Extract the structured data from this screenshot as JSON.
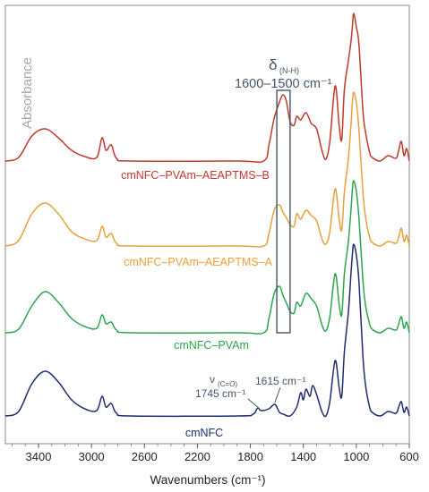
{
  "chart_data": {
    "type": "line",
    "xlabel": "Wavenumbers (cm⁻¹)",
    "ylabel": "Absorbance",
    "x_reversed": true,
    "xlim": [
      3650,
      600
    ],
    "x_ticks": [
      3400,
      3000,
      2600,
      2200,
      1800,
      1400,
      1000,
      600
    ],
    "x_tick_labels": [
      "3400",
      "3000",
      "2600",
      "2200",
      "1800",
      "1400",
      "1000",
      "600"
    ],
    "y_ticks_shown": false,
    "grid": false,
    "series": [
      {
        "name": "cmNFC–PVAm–AEAPTMS–B",
        "color": "#c0392b",
        "offset": 180,
        "points": [
          [
            3650,
            0
          ],
          [
            3550,
            4
          ],
          [
            3450,
            28
          ],
          [
            3350,
            36
          ],
          [
            3250,
            26
          ],
          [
            3150,
            12
          ],
          [
            3050,
            5
          ],
          [
            2960,
            4
          ],
          [
            2920,
            26
          ],
          [
            2890,
            12
          ],
          [
            2850,
            18
          ],
          [
            2810,
            3
          ],
          [
            2700,
            0
          ],
          [
            1900,
            0
          ],
          [
            1700,
            0
          ],
          [
            1660,
            18
          ],
          [
            1620,
            48
          ],
          [
            1580,
            66
          ],
          [
            1555,
            74
          ],
          [
            1530,
            68
          ],
          [
            1500,
            44
          ],
          [
            1470,
            40
          ],
          [
            1450,
            50
          ],
          [
            1420,
            46
          ],
          [
            1380,
            54
          ],
          [
            1340,
            42
          ],
          [
            1300,
            36
          ],
          [
            1260,
            12
          ],
          [
            1230,
            2
          ],
          [
            1200,
            22
          ],
          [
            1160,
            84
          ],
          [
            1130,
            40
          ],
          [
            1110,
            24
          ],
          [
            1090,
            80
          ],
          [
            1060,
            112
          ],
          [
            1040,
            134
          ],
          [
            1030,
            150
          ],
          [
            1020,
            165
          ],
          [
            1000,
            150
          ],
          [
            980,
            130
          ],
          [
            950,
            56
          ],
          [
            930,
            32
          ],
          [
            900,
            10
          ],
          [
            880,
            4
          ],
          [
            820,
            0
          ],
          [
            760,
            6
          ],
          [
            700,
            3
          ],
          [
            680,
            12
          ],
          [
            660,
            22
          ],
          [
            640,
            6
          ],
          [
            620,
            14
          ],
          [
            600,
            0
          ]
        ]
      },
      {
        "name": "cmNFC–PVAm–AEAPTMS–A",
        "color": "#e8a03c",
        "offset": 275,
        "points": [
          [
            3650,
            0
          ],
          [
            3550,
            6
          ],
          [
            3450,
            36
          ],
          [
            3350,
            48
          ],
          [
            3250,
            36
          ],
          [
            3150,
            16
          ],
          [
            3050,
            8
          ],
          [
            2960,
            6
          ],
          [
            2920,
            22
          ],
          [
            2890,
            10
          ],
          [
            2850,
            14
          ],
          [
            2810,
            3
          ],
          [
            2700,
            0
          ],
          [
            1900,
            0
          ],
          [
            1700,
            0
          ],
          [
            1660,
            14
          ],
          [
            1620,
            40
          ],
          [
            1580,
            46
          ],
          [
            1555,
            38
          ],
          [
            1530,
            32
          ],
          [
            1500,
            24
          ],
          [
            1470,
            22
          ],
          [
            1450,
            36
          ],
          [
            1420,
            30
          ],
          [
            1380,
            40
          ],
          [
            1340,
            34
          ],
          [
            1300,
            28
          ],
          [
            1260,
            8
          ],
          [
            1230,
            2
          ],
          [
            1200,
            16
          ],
          [
            1160,
            64
          ],
          [
            1130,
            30
          ],
          [
            1110,
            18
          ],
          [
            1090,
            60
          ],
          [
            1060,
            98
          ],
          [
            1040,
            136
          ],
          [
            1030,
            160
          ],
          [
            1020,
            172
          ],
          [
            1000,
            160
          ],
          [
            980,
            130
          ],
          [
            950,
            60
          ],
          [
            930,
            32
          ],
          [
            900,
            10
          ],
          [
            880,
            4
          ],
          [
            820,
            0
          ],
          [
            760,
            5
          ],
          [
            700,
            3
          ],
          [
            680,
            10
          ],
          [
            660,
            20
          ],
          [
            640,
            5
          ],
          [
            620,
            12
          ],
          [
            600,
            0
          ]
        ]
      },
      {
        "name": "cmNFC–PVAm",
        "color": "#2ca64e",
        "offset": 372,
        "points": [
          [
            3650,
            0
          ],
          [
            3550,
            4
          ],
          [
            3450,
            30
          ],
          [
            3350,
            46
          ],
          [
            3250,
            34
          ],
          [
            3150,
            16
          ],
          [
            3050,
            7
          ],
          [
            2960,
            5
          ],
          [
            2920,
            20
          ],
          [
            2890,
            10
          ],
          [
            2850,
            12
          ],
          [
            2810,
            3
          ],
          [
            2700,
            0
          ],
          [
            1900,
            0
          ],
          [
            1700,
            0
          ],
          [
            1660,
            16
          ],
          [
            1620,
            44
          ],
          [
            1580,
            52
          ],
          [
            1555,
            42
          ],
          [
            1530,
            34
          ],
          [
            1500,
            24
          ],
          [
            1470,
            22
          ],
          [
            1450,
            34
          ],
          [
            1420,
            30
          ],
          [
            1380,
            44
          ],
          [
            1340,
            38
          ],
          [
            1300,
            30
          ],
          [
            1260,
            9
          ],
          [
            1230,
            2
          ],
          [
            1200,
            18
          ],
          [
            1160,
            66
          ],
          [
            1130,
            32
          ],
          [
            1110,
            20
          ],
          [
            1090,
            66
          ],
          [
            1060,
            102
          ],
          [
            1040,
            138
          ],
          [
            1030,
            160
          ],
          [
            1020,
            170
          ],
          [
            1000,
            158
          ],
          [
            980,
            128
          ],
          [
            950,
            58
          ],
          [
            930,
            30
          ],
          [
            900,
            10
          ],
          [
            880,
            4
          ],
          [
            820,
            0
          ],
          [
            760,
            5
          ],
          [
            700,
            3
          ],
          [
            680,
            10
          ],
          [
            660,
            18
          ],
          [
            640,
            5
          ],
          [
            620,
            12
          ],
          [
            600,
            0
          ]
        ]
      },
      {
        "name": "cmNFC",
        "color": "#1f2d6e",
        "offset": 465,
        "points": [
          [
            3650,
            0
          ],
          [
            3550,
            5
          ],
          [
            3450,
            36
          ],
          [
            3350,
            50
          ],
          [
            3250,
            38
          ],
          [
            3150,
            18
          ],
          [
            3050,
            8
          ],
          [
            2960,
            6
          ],
          [
            2920,
            22
          ],
          [
            2890,
            10
          ],
          [
            2850,
            14
          ],
          [
            2810,
            3
          ],
          [
            2700,
            0
          ],
          [
            1900,
            0
          ],
          [
            1780,
            2
          ],
          [
            1745,
            9
          ],
          [
            1720,
            6
          ],
          [
            1660,
            8
          ],
          [
            1615,
            13
          ],
          [
            1580,
            4
          ],
          [
            1550,
            2
          ],
          [
            1500,
            0
          ],
          [
            1450,
            10
          ],
          [
            1420,
            26
          ],
          [
            1400,
            18
          ],
          [
            1380,
            30
          ],
          [
            1350,
            22
          ],
          [
            1330,
            34
          ],
          [
            1300,
            24
          ],
          [
            1260,
            5
          ],
          [
            1230,
            0
          ],
          [
            1200,
            16
          ],
          [
            1160,
            62
          ],
          [
            1130,
            32
          ],
          [
            1110,
            22
          ],
          [
            1090,
            72
          ],
          [
            1060,
            116
          ],
          [
            1040,
            160
          ],
          [
            1030,
            180
          ],
          [
            1020,
            192
          ],
          [
            1000,
            180
          ],
          [
            980,
            150
          ],
          [
            950,
            66
          ],
          [
            930,
            34
          ],
          [
            900,
            10
          ],
          [
            880,
            4
          ],
          [
            820,
            0
          ],
          [
            760,
            5
          ],
          [
            700,
            3
          ],
          [
            680,
            10
          ],
          [
            660,
            16
          ],
          [
            640,
            4
          ],
          [
            620,
            10
          ],
          [
            600,
            0
          ]
        ]
      }
    ],
    "annotations": {
      "delta_symbol": "δ",
      "delta_sub": "(N-H)",
      "delta_range": "1600–1500 cm⁻¹",
      "band_x": [
        1600,
        1500
      ],
      "nu_symbol": "ν",
      "nu_sub": "(C=O)",
      "nu_value": "1745 cm⁻¹",
      "nu_x": 1745,
      "peak_1615": "1615 cm⁻¹",
      "peak_1615_x": 1615
    }
  }
}
